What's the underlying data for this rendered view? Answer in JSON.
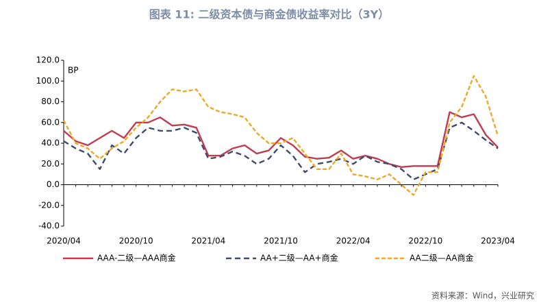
{
  "chart_data": {
    "type": "line",
    "title": "图表 11: 二级资本债与商金债收益率对比（3Y）",
    "y_unit": "BP",
    "source": "资料来源：Wind，兴业研究",
    "x": [
      "2020/04",
      "2020/05",
      "2020/06",
      "2020/07",
      "2020/08",
      "2020/09",
      "2020/10",
      "2020/11",
      "2020/12",
      "2021/01",
      "2021/02",
      "2021/03",
      "2021/04",
      "2021/05",
      "2021/06",
      "2021/07",
      "2021/08",
      "2021/09",
      "2021/10",
      "2021/11",
      "2021/12",
      "2022/01",
      "2022/02",
      "2022/03",
      "2022/04",
      "2022/05",
      "2022/06",
      "2022/07",
      "2022/08",
      "2022/09",
      "2022/10",
      "2022/11",
      "2022/12",
      "2023/01",
      "2023/02",
      "2023/03",
      "2023/04"
    ],
    "xticks": [
      "2020/04",
      "2020/10",
      "2021/04",
      "2021/10",
      "2022/04",
      "2022/10",
      "2023/04"
    ],
    "ylim": [
      -40,
      120
    ],
    "yticks": [
      {
        "value": -40,
        "label": "-40.0"
      },
      {
        "value": -20,
        "label": "-20.0"
      },
      {
        "value": 0,
        "label": "0.0"
      },
      {
        "value": 20,
        "label": "20.0"
      },
      {
        "value": 40,
        "label": "40.0"
      },
      {
        "value": 60,
        "label": "60.0"
      },
      {
        "value": 80,
        "label": "80.0"
      },
      {
        "value": 100,
        "label": "100.0"
      },
      {
        "value": 120,
        "label": "120.0"
      }
    ],
    "series": [
      {
        "name": "AAA-二级—AAA商金",
        "color": "#c23a4e",
        "dash": "solid",
        "values": [
          52,
          42,
          38,
          45,
          52,
          45,
          60,
          60,
          65,
          57,
          58,
          55,
          28,
          28,
          35,
          38,
          30,
          33,
          45,
          38,
          27,
          25,
          26,
          33,
          25,
          28,
          25,
          20,
          17,
          18,
          18,
          18,
          70,
          65,
          68,
          48,
          36
        ]
      },
      {
        "name": "AA+二级—AA+商金",
        "color": "#3d4a6b",
        "dash": "dashed",
        "values": [
          42,
          35,
          30,
          15,
          38,
          30,
          45,
          55,
          52,
          52,
          55,
          50,
          25,
          27,
          32,
          28,
          20,
          25,
          38,
          28,
          12,
          20,
          22,
          25,
          20,
          28,
          22,
          20,
          15,
          5,
          10,
          15,
          55,
          60,
          52,
          43,
          35
        ]
      },
      {
        "name": "AA二级—AA商金",
        "color": "#f0a823",
        "dash": "dashed",
        "values": [
          62,
          40,
          35,
          25,
          35,
          42,
          55,
          65,
          80,
          92,
          90,
          92,
          75,
          70,
          68,
          65,
          50,
          40,
          40,
          45,
          30,
          15,
          15,
          30,
          10,
          8,
          5,
          10,
          0,
          -10,
          12,
          12,
          60,
          75,
          105,
          85,
          47
        ]
      }
    ]
  }
}
